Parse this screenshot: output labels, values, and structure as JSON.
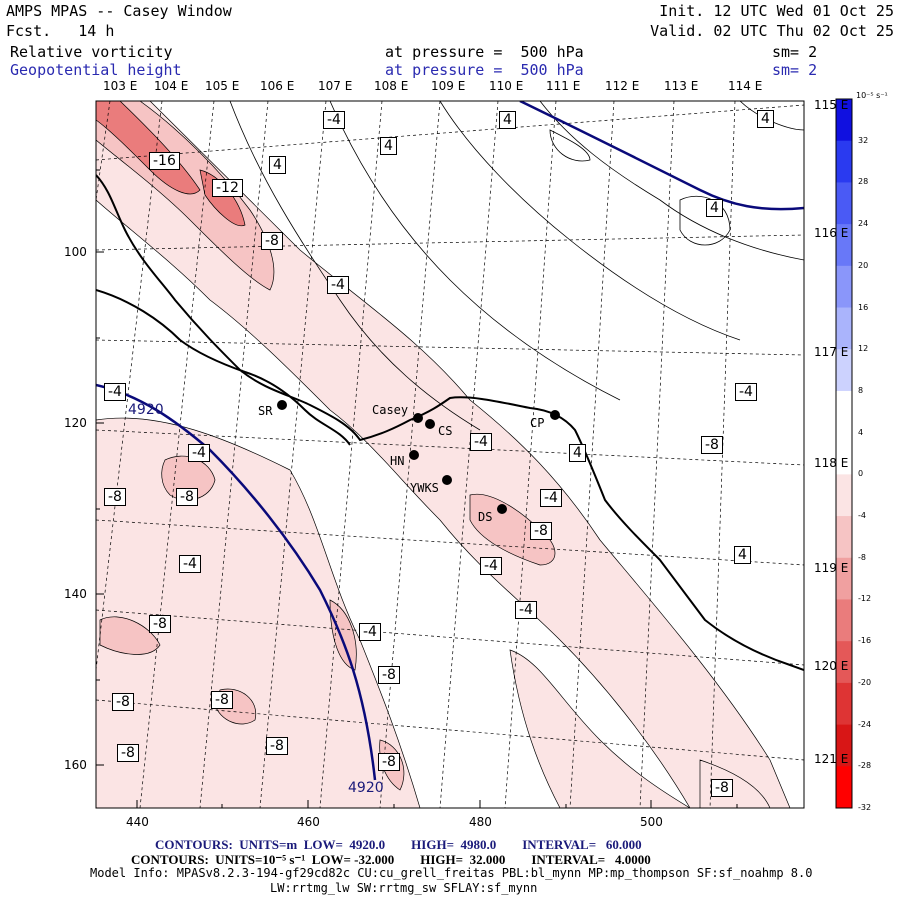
{
  "header": {
    "title": "AMPS MPAS -- Casey Window",
    "forecast": "Fcst.   14 h",
    "init": "Init. 12 UTC Wed 01 Oct 25",
    "valid": "Valid. 02 UTC Thu 02 Oct 25",
    "field1_name": "Relative vorticity",
    "field1_level": "at pressure =  500 hPa",
    "field1_sm": "sm= 2",
    "field2_name": "Geopotential height",
    "field2_level": "at pressure =  500 hPa",
    "field2_sm": "sm= 2"
  },
  "axes": {
    "top_lon_labels": [
      "103 E",
      "104 E",
      "105 E",
      "106 E",
      "107 E",
      "108 E",
      "109 E",
      "110 E",
      "111 E",
      "112 E",
      "113 E",
      "114 E"
    ],
    "right_lon_labels": [
      "115 E",
      "116 E",
      "117 E",
      "118 E",
      "119 E",
      "120 E",
      "121 E"
    ],
    "left_y_ticks": [
      "100",
      "120",
      "140",
      "160"
    ],
    "bottom_x_ticks": [
      "440",
      "460",
      "480",
      "500"
    ]
  },
  "colorbar": {
    "unit": "10⁻⁵ s⁻¹",
    "labels": [
      "32",
      "28",
      "24",
      "20",
      "16",
      "12",
      "8",
      "4",
      "0",
      "-4",
      "-8",
      "-12",
      "-16",
      "-20",
      "-24",
      "-28",
      "-32"
    ],
    "colors": [
      "#1010e0",
      "#2a3af0",
      "#4a5af5",
      "#6878f8",
      "#8a96fa",
      "#aab4fc",
      "#ccd2fe",
      "#ffffff",
      "#ffffff",
      "#fbe4e4",
      "#f6c4c4",
      "#f0a0a0",
      "#ea7c7c",
      "#e45858",
      "#de3434",
      "#d81616",
      "#ff0000"
    ]
  },
  "stations": [
    "Casey",
    "CS",
    "SR",
    "HN",
    "YWKS",
    "CP",
    "DS"
  ],
  "height_contour_labels": [
    "4920",
    "4920"
  ],
  "vorticity_labels": [
    "-16",
    "-12",
    "-8",
    "-4",
    "4",
    "-4",
    "4",
    "4",
    "4",
    "4",
    "-4",
    "-8",
    "-8",
    "-8",
    "-4",
    "-4",
    "-4",
    "-8",
    "-8",
    "-8",
    "-8",
    "-8",
    "-4",
    "-4",
    "-4",
    "-4",
    "-4",
    "-8",
    "-8",
    "-8",
    "-8",
    "4",
    "4",
    "4"
  ],
  "footer": {
    "contours1": "CONTOURS:  UNITS=m  LOW=  4920.0        HIGH=  4980.0        INTERVAL=   60.000",
    "contours2": "CONTOURS:  UNITS=10⁻⁵ s⁻¹  LOW= -32.000        HIGH=  32.000        INTERVAL=   4.0000",
    "model_info": "Model Info: MPASv8.2.3-194-gf29cd82c CU:cu_grell_freitas PBL:bl_mynn MP:mp_thompson SF:sf_noahmp 8.0",
    "model_info2": "LW:rrtmg_lw SW:rrtmg_sw SFLAY:sf_mynn"
  },
  "colors": {
    "height_contour": "#0a0a7a",
    "negative_shade": "#f6c4c4",
    "positive_shade": "#ccd2fe"
  }
}
